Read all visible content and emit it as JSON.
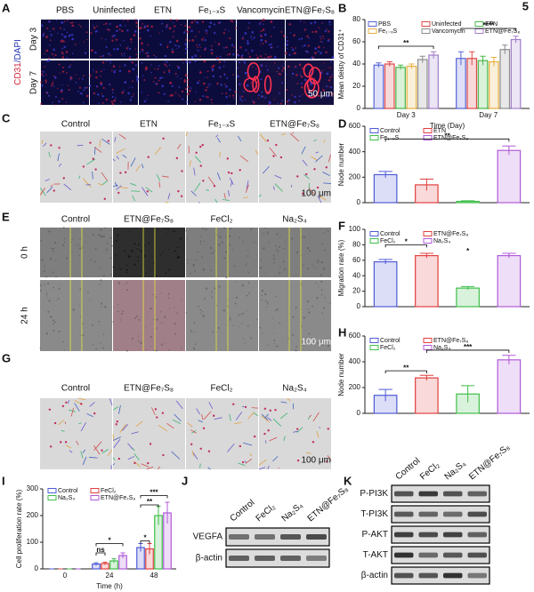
{
  "figure_number": "5",
  "panels": {
    "A": {
      "label": "A",
      "columns": [
        "PBS",
        "Uninfected",
        "ETN",
        "Fe₁₋ₓS",
        "Vancomycin",
        "ETN@Fe₇S₈"
      ],
      "rows": [
        "Day 3",
        "Day 7"
      ],
      "stain": [
        "CD31",
        "/DAPI"
      ],
      "scale_bar": "50 μm"
    },
    "C": {
      "label": "C",
      "columns": [
        "Control",
        "ETN",
        "Fe₁₋ₓS",
        "ETN@Fe₇S₈"
      ],
      "scale_bar": "100 μm"
    },
    "E": {
      "label": "E",
      "columns": [
        "Control",
        "ETN@Fe₇S₈",
        "FeCl₂",
        "Na₂S₄"
      ],
      "rows": [
        "0 h",
        "24 h"
      ],
      "scale_bar": "100 μm"
    },
    "G": {
      "label": "G",
      "columns": [
        "Control",
        "ETN@Fe₇S₈",
        "FeCl₂",
        "Na₂S₄"
      ],
      "scale_bar": "100 μm"
    },
    "J": {
      "label": "J",
      "columns": [
        "Control",
        "FeCl₂",
        "Na₂S₄",
        "ETN@Fe₇S₈"
      ],
      "rows": [
        "VEGFA",
        "β-actin"
      ]
    },
    "K": {
      "label": "K",
      "columns": [
        "Control",
        "FeCl₂",
        "Na₂S₄",
        "ETN@Fe₇S₈"
      ],
      "rows": [
        "P-PI3K",
        "T-PI3K",
        "P-AKT",
        "T-AKT",
        "β-actin"
      ]
    }
  },
  "chart_data": [
    {
      "type": "grouped_bar",
      "label": "B",
      "y_label": "Mean deisty of CD31⁺",
      "x_label": "Time (Day)",
      "categories": [
        "Day 3",
        "Day 7"
      ],
      "series": [
        {
          "name": "PBS",
          "color": "#5865d6",
          "values": [
            39,
            45
          ],
          "errors": [
            2,
            6
          ]
        },
        {
          "name": "Uninfected",
          "color": "#e04848",
          "values": [
            40,
            45
          ],
          "errors": [
            2,
            6
          ]
        },
        {
          "name": "ETN",
          "color": "#48b848",
          "values": [
            37,
            43
          ],
          "errors": [
            2,
            4
          ]
        },
        {
          "name": "Fe₁₋ₓS",
          "color": "#e8b040",
          "values": [
            38,
            42
          ],
          "errors": [
            2,
            4
          ]
        },
        {
          "name": "Vancomycin",
          "color": "#8c8c8c",
          "values": [
            44,
            53
          ],
          "errors": [
            3,
            4
          ]
        },
        {
          "name": "ETN@Fe₇S₈",
          "color": "#a07cc8",
          "values": [
            48,
            62
          ],
          "errors": [
            3,
            3
          ]
        }
      ],
      "ylim": [
        0,
        80
      ],
      "yticks": [
        0,
        20,
        40,
        60,
        80
      ],
      "annotations": [
        "**",
        "****"
      ]
    },
    {
      "type": "bar",
      "label": "D",
      "y_label": "Node number",
      "categories": [
        "Control",
        "ETN",
        "Fe₁₋ₓS",
        "ETN@Fe₇S₈"
      ],
      "colors": [
        "#4f5bd5",
        "#e0413f",
        "#3fbf4a",
        "#b05ad8"
      ],
      "values": [
        220,
        140,
        10,
        410
      ],
      "errors": [
        25,
        45,
        5,
        35
      ],
      "ylim": [
        0,
        600
      ],
      "yticks": [
        0,
        200,
        400,
        600
      ],
      "annotations": [
        "**"
      ]
    },
    {
      "type": "bar",
      "label": "F",
      "y_label": "Migration rate (%)",
      "categories": [
        "Control",
        "ETN@Fe₇S₈",
        "FeCl₂",
        "Na₂S₄"
      ],
      "colors": [
        "#4f5bd5",
        "#e0413f",
        "#3fbf4a",
        "#b05ad8"
      ],
      "values": [
        58,
        66,
        24,
        66
      ],
      "errors": [
        3,
        3,
        2,
        3
      ],
      "ylim": [
        0,
        100
      ],
      "yticks": [
        0,
        20,
        40,
        60,
        80,
        100
      ],
      "annotations": [
        "*",
        "*"
      ]
    },
    {
      "type": "bar",
      "label": "H",
      "y_label": "Node number",
      "categories": [
        "Control",
        "ETN@Fe₇S₈",
        "FeCl₂",
        "Na₂S₄"
      ],
      "colors": [
        "#4f5bd5",
        "#e0413f",
        "#3fbf4a",
        "#b05ad8"
      ],
      "values": [
        140,
        275,
        150,
        415
      ],
      "errors": [
        45,
        20,
        65,
        35
      ],
      "ylim": [
        0,
        600
      ],
      "yticks": [
        0,
        200,
        400,
        600
      ],
      "annotations": [
        "**",
        "***"
      ]
    },
    {
      "type": "grouped_bar",
      "label": "I",
      "y_label": "Cell proliferation rate (%)",
      "x_label": "Time (h)",
      "categories": [
        "0",
        "24",
        "48"
      ],
      "series": [
        {
          "name": "Control",
          "color": "#4f5bd5",
          "values": [
            0,
            18,
            80
          ],
          "errors": [
            0,
            5,
            15
          ]
        },
        {
          "name": "FeCl₂",
          "color": "#e0413f",
          "values": [
            0,
            20,
            75
          ],
          "errors": [
            0,
            5,
            20
          ]
        },
        {
          "name": "Na₂S₄",
          "color": "#3fbf4a",
          "values": [
            0,
            30,
            200
          ],
          "errors": [
            0,
            8,
            35
          ]
        },
        {
          "name": "ETN@Fe₇S₈",
          "color": "#b05ad8",
          "values": [
            0,
            50,
            210
          ],
          "errors": [
            0,
            10,
            40
          ]
        }
      ],
      "ylim": [
        0,
        300
      ],
      "yticks": [
        0,
        100,
        200,
        300
      ],
      "annotations": [
        "ns",
        "*",
        "*",
        "**",
        "***"
      ]
    }
  ]
}
